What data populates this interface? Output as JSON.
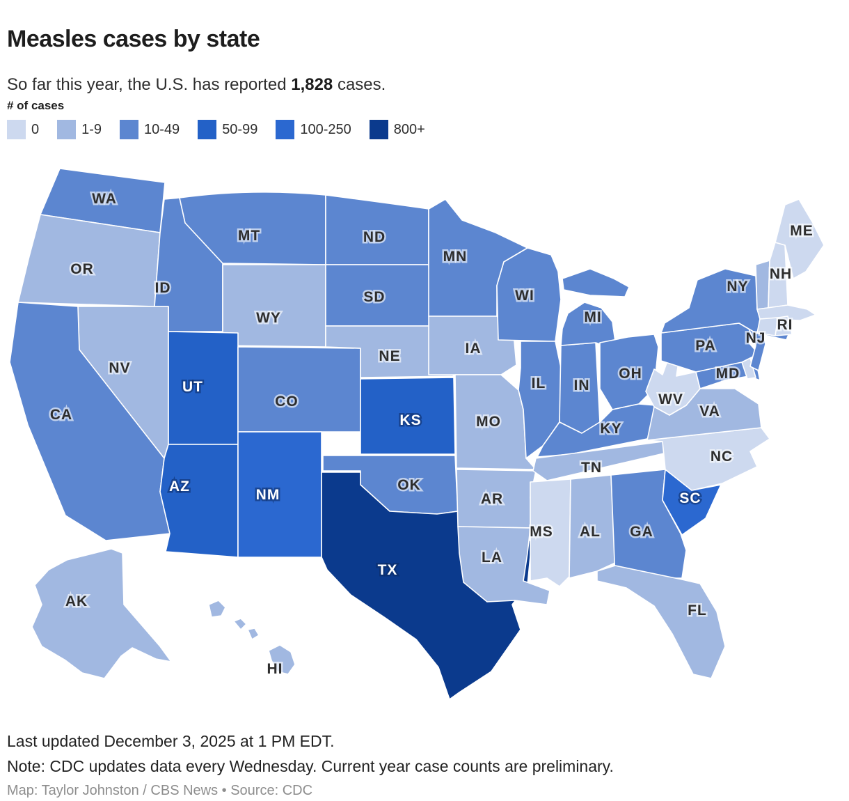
{
  "header": {
    "title": "Measles cases by state",
    "subtitle_prefix": "So far this year, the U.S. has reported ",
    "subtitle_bold": "1,828",
    "subtitle_suffix": " cases."
  },
  "legend": {
    "title": "# of cases",
    "categories": [
      {
        "label": "0",
        "color": "#cdd9ef"
      },
      {
        "label": "1-9",
        "color": "#a1b8e1"
      },
      {
        "label": "10-49",
        "color": "#5c86d0"
      },
      {
        "label": "50-99",
        "color": "#2361c7"
      },
      {
        "label": "100-250",
        "color": "#2b68d0"
      },
      {
        "label": "800+",
        "color": "#0b3a8d"
      }
    ]
  },
  "map": {
    "states": [
      {
        "id": "WA",
        "label": "WA",
        "cases": "10-49"
      },
      {
        "id": "OR",
        "label": "OR",
        "cases": "1-9"
      },
      {
        "id": "CA",
        "label": "CA",
        "cases": "10-49"
      },
      {
        "id": "NV",
        "label": "NV",
        "cases": "1-9"
      },
      {
        "id": "ID",
        "label": "ID",
        "cases": "10-49"
      },
      {
        "id": "MT",
        "label": "MT",
        "cases": "10-49"
      },
      {
        "id": "WY",
        "label": "WY",
        "cases": "1-9"
      },
      {
        "id": "UT",
        "label": "UT",
        "cases": "50-99"
      },
      {
        "id": "CO",
        "label": "CO",
        "cases": "10-49"
      },
      {
        "id": "AZ",
        "label": "AZ",
        "cases": "50-99"
      },
      {
        "id": "NM",
        "label": "NM",
        "cases": "100-250"
      },
      {
        "id": "ND",
        "label": "ND",
        "cases": "10-49"
      },
      {
        "id": "SD",
        "label": "SD",
        "cases": "10-49"
      },
      {
        "id": "NE",
        "label": "NE",
        "cases": "1-9"
      },
      {
        "id": "KS",
        "label": "KS",
        "cases": "50-99"
      },
      {
        "id": "OK",
        "label": "OK",
        "cases": "10-49"
      },
      {
        "id": "TX",
        "label": "TX",
        "cases": "800+"
      },
      {
        "id": "MN",
        "label": "MN",
        "cases": "10-49"
      },
      {
        "id": "IA",
        "label": "IA",
        "cases": "1-9"
      },
      {
        "id": "MO",
        "label": "MO",
        "cases": "1-9"
      },
      {
        "id": "AR",
        "label": "AR",
        "cases": "1-9"
      },
      {
        "id": "LA",
        "label": "LA",
        "cases": "1-9"
      },
      {
        "id": "WI",
        "label": "WI",
        "cases": "10-49"
      },
      {
        "id": "IL",
        "label": "IL",
        "cases": "10-49"
      },
      {
        "id": "IN",
        "label": "IN",
        "cases": "10-49"
      },
      {
        "id": "MI",
        "label": "MI",
        "cases": "10-49"
      },
      {
        "id": "OH",
        "label": "OH",
        "cases": "10-49"
      },
      {
        "id": "KY",
        "label": "KY",
        "cases": "10-49"
      },
      {
        "id": "TN",
        "label": "TN",
        "cases": "1-9"
      },
      {
        "id": "MS",
        "label": "MS",
        "cases": "0"
      },
      {
        "id": "AL",
        "label": "AL",
        "cases": "1-9"
      },
      {
        "id": "GA",
        "label": "GA",
        "cases": "10-49"
      },
      {
        "id": "FL",
        "label": "FL",
        "cases": "1-9"
      },
      {
        "id": "SC",
        "label": "SC",
        "cases": "100-250"
      },
      {
        "id": "NC",
        "label": "NC",
        "cases": "0"
      },
      {
        "id": "VA",
        "label": "VA",
        "cases": "1-9"
      },
      {
        "id": "WV",
        "label": "WV",
        "cases": "0"
      },
      {
        "id": "MD",
        "label": "MD",
        "cases": "10-49"
      },
      {
        "id": "DE",
        "label": "",
        "cases": "0"
      },
      {
        "id": "PA",
        "label": "PA",
        "cases": "10-49"
      },
      {
        "id": "NJ",
        "label": "NJ",
        "cases": "10-49"
      },
      {
        "id": "NY",
        "label": "NY",
        "cases": "10-49"
      },
      {
        "id": "CT",
        "label": "",
        "cases": "0"
      },
      {
        "id": "RI",
        "label": "RI",
        "cases": "0"
      },
      {
        "id": "MA",
        "label": "",
        "cases": "0"
      },
      {
        "id": "VT",
        "label": "",
        "cases": "1-9"
      },
      {
        "id": "NH",
        "label": "NH",
        "cases": "0"
      },
      {
        "id": "ME",
        "label": "ME",
        "cases": "0"
      },
      {
        "id": "AK",
        "label": "AK",
        "cases": "1-9"
      },
      {
        "id": "HI",
        "label": "HI",
        "cases": "1-9"
      }
    ]
  },
  "footer": {
    "line1": "Last updated December 3, 2025 at 1 PM EDT.",
    "line2": "Note: CDC updates data every Wednesday. Current year case counts are preliminary.",
    "credit": "Map: Taylor Johnston / CBS News • Source: CDC"
  }
}
